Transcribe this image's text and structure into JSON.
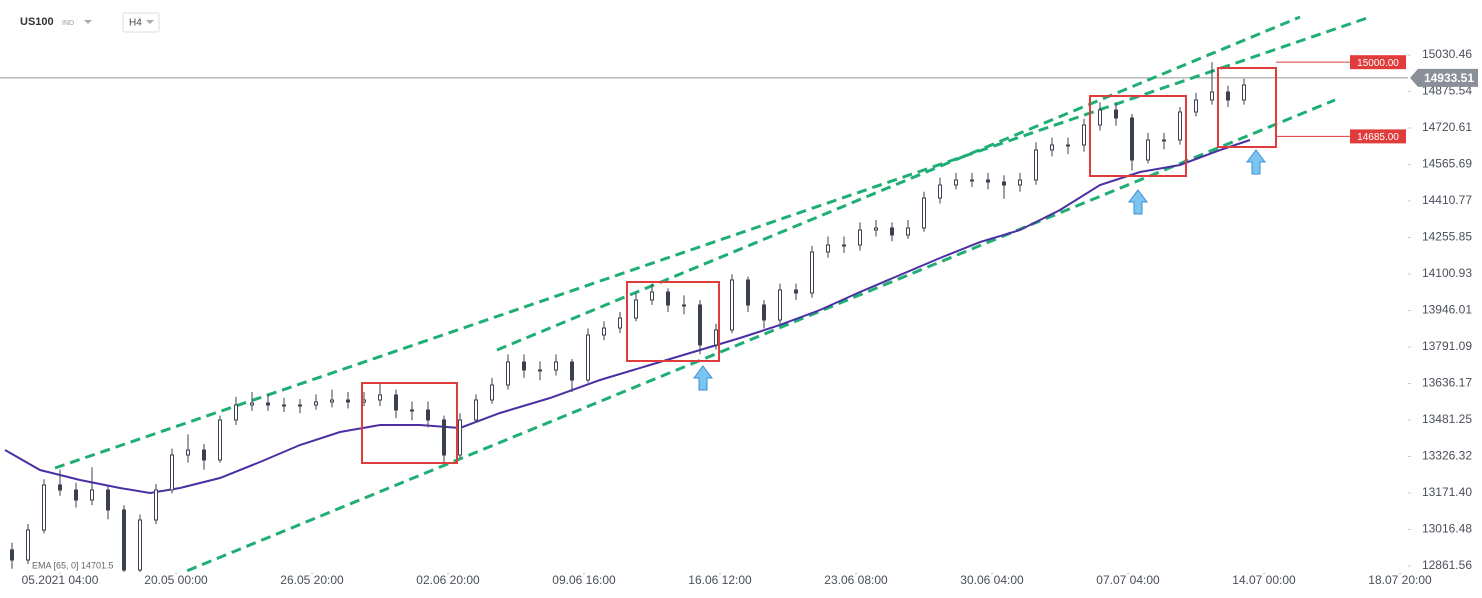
{
  "chart_data": {
    "type": "candlestick",
    "symbol": "US100",
    "market": "IND",
    "timeframe": "H4",
    "xlim": [
      0,
      352
    ],
    "ylim": [
      12836.1,
      15263.9
    ],
    "xticks": [
      {
        "value": 15,
        "label": "05.2021 04:00"
      },
      {
        "value": 44,
        "label": "20.05 00:00"
      },
      {
        "value": 78,
        "label": "26.05 20:00"
      },
      {
        "value": 112,
        "label": "02.06 20:00"
      },
      {
        "value": 146,
        "label": "09.06 16:00"
      },
      {
        "value": 180,
        "label": "16.06 12:00"
      },
      {
        "value": 214,
        "label": "23.06 08:00"
      },
      {
        "value": 248,
        "label": "30.06 04:00"
      },
      {
        "value": 282,
        "label": "07.07 04:00"
      },
      {
        "value": 316,
        "label": "14.07 00:00"
      },
      {
        "value": 350,
        "label": "18.07 20:00"
      }
    ],
    "yticks": [
      15030.46,
      14875.54,
      14720.61,
      14565.69,
      14410.77,
      14255.85,
      14100.93,
      13946.01,
      13791.09,
      13636.17,
      13481.25,
      13326.32,
      {
        "value": 13171.4,
        "label": "13171.40"
      },
      13016.48,
      12861.56
    ],
    "grid": false,
    "up_color": "#ffffff",
    "down_color": "#3c4150",
    "x": [
      3,
      7,
      11,
      15,
      19,
      23,
      27,
      31,
      35,
      39,
      43,
      47,
      51,
      55,
      59,
      63,
      67,
      71,
      75,
      79,
      83,
      87,
      91,
      95,
      99,
      103,
      107,
      111,
      115,
      119,
      123,
      127,
      131,
      135,
      139,
      143,
      147,
      151,
      155,
      159,
      163,
      167,
      171,
      175,
      179,
      183,
      187,
      191,
      195,
      199,
      203,
      207,
      211,
      215,
      219,
      223,
      227,
      231,
      235,
      239,
      243,
      247,
      251,
      255,
      259,
      263,
      267,
      271,
      275,
      279,
      283,
      287,
      291,
      295,
      299,
      303,
      307,
      311
    ],
    "open": [
      12930,
      12887.0,
      13014.4,
      13205.4,
      13184.1,
      13141.7,
      13184.1,
      13099.3,
      12844.6,
      13056.8,
      13184.1,
      13332.7,
      13353.9,
      13311.5,
      13481.3,
      13544.9,
      13553.4,
      13544.9,
      13544.9,
      13544.9,
      13557.7,
      13566.1,
      13557.7,
      13566.1,
      13587.4,
      13523.7,
      13523.7,
      13481.3,
      13332.7,
      13481.3,
      13566.1,
      13629.8,
      13727.4,
      13693.5,
      13693.5,
      13727.4,
      13651.0,
      13842.0,
      13871.7,
      13914.2,
      13990.6,
      14024.5,
      13969.4,
      13969.4,
      13799.6,
      13863.2,
      14075.5,
      13969.4,
      13905.7,
      14033.0,
      14020.3,
      14194.3,
      14224.0,
      14224.0,
      14287.7,
      14296.2,
      14266.5,
      14296.2,
      14423.5,
      14478.7,
      14499.9,
      14499.9,
      14491.4,
      14478.7,
      14499.9,
      14627.2,
      14648.5,
      14648.5,
      14733.3,
      14797.0,
      14763.1,
      14584.8,
      14669.7,
      14669.7,
      14788.5,
      14839.5,
      14873.4,
      14839.5
    ],
    "high": [
      12960,
      13040,
      13230,
      13270,
      13215,
      13280,
      13200,
      13120,
      13080,
      13210,
      13360,
      13420,
      13380,
      13500,
      13580,
      13600,
      13590,
      13575,
      13570,
      13590,
      13610,
      13600,
      13600,
      13640,
      13610,
      13560,
      13560,
      13500,
      13510,
      13590,
      13660,
      13760,
      13760,
      13730,
      13760,
      13740,
      13870,
      13900,
      13940,
      14020,
      14060,
      14040,
      14010,
      13990,
      13890,
      14100,
      14090,
      13990,
      14060,
      14060,
      14220,
      14260,
      14260,
      14320,
      14330,
      14320,
      14330,
      14450,
      14510,
      14530,
      14530,
      14530,
      14520,
      14530,
      14660,
      14680,
      14680,
      14760,
      14830,
      14830,
      14780,
      14700,
      14700,
      14810,
      14870,
      15000,
      14900,
      14930
    ],
    "low": [
      12850,
      12870,
      13000,
      13160,
      13110,
      13120,
      13060,
      12800,
      12830,
      13040,
      13170,
      13300,
      13270,
      13300,
      13460,
      13520,
      13520,
      13515,
      13510,
      13525,
      13535,
      13530,
      13540,
      13540,
      13490,
      13480,
      13450,
      13300,
      13320,
      13470,
      13550,
      13610,
      13660,
      13650,
      13670,
      13600,
      13640,
      13820,
      13850,
      13900,
      13970,
      13940,
      13930,
      13760,
      13780,
      13850,
      13940,
      13870,
      13890,
      13990,
      14000,
      14170,
      14190,
      14200,
      14260,
      14240,
      14250,
      14280,
      14400,
      14460,
      14470,
      14460,
      14420,
      14450,
      14480,
      14600,
      14610,
      14620,
      14710,
      14730,
      14540,
      14570,
      14630,
      14650,
      14770,
      14820,
      14810,
      14820
    ],
    "close": [
      12887.0,
      13014.4,
      13205.4,
      13184.1,
      13141.7,
      13184.1,
      13099.3,
      12844.6,
      13056.8,
      13184.1,
      13332.7,
      13353.9,
      13311.5,
      13481.3,
      13544.9,
      13553.4,
      13544.9,
      13544.9,
      13544.9,
      13557.7,
      13566.1,
      13557.7,
      13566.1,
      13587.4,
      13523.7,
      13523.7,
      13481.3,
      13332.7,
      13481.3,
      13566.1,
      13629.8,
      13727.4,
      13693.5,
      13693.5,
      13727.4,
      13651.0,
      13842.0,
      13871.7,
      13914.2,
      13990.6,
      14024.5,
      13969.4,
      13969.4,
      13799.6,
      13863.2,
      14075.5,
      13969.4,
      13905.7,
      14033.0,
      14020.3,
      14194.3,
      14224.0,
      14224.0,
      14287.7,
      14296.2,
      14266.5,
      14296.2,
      14423.5,
      14478.7,
      14499.9,
      14499.9,
      14491.4,
      14478.7,
      14499.9,
      14627.2,
      14648.5,
      14648.5,
      14733.3,
      14797.0,
      14763.1,
      14584.8,
      14669.7,
      14669.7,
      14788.5,
      14839.5,
      14873.4,
      14839.5,
      14903.1
    ],
    "ema": {
      "name": "EMA [65, 0] 14701.5",
      "color": "#4b2fa3",
      "x": [
        1.25,
        10,
        20,
        30,
        37.5,
        45,
        55,
        65,
        75,
        85,
        95,
        105,
        115,
        125,
        137.5,
        150,
        162.5,
        175,
        185,
        195,
        205,
        215,
        225,
        235,
        245,
        255,
        265,
        275,
        285,
        295,
        305,
        312.5
      ],
      "values": [
        13353.9,
        13269.0,
        13226.6,
        13192.6,
        13171.4,
        13192.6,
        13235.1,
        13303.0,
        13375.1,
        13430.3,
        13460.0,
        13460.0,
        13447.3,
        13511.0,
        13574.6,
        13651.0,
        13714.7,
        13778.4,
        13829.3,
        13884.5,
        13948.1,
        14024.5,
        14096.7,
        14168.8,
        14236.7,
        14287.7,
        14372.6,
        14478.7,
        14533.8,
        14563.6,
        14627.2,
        14669.7
      ]
    },
    "trendline_color": "#1fae74",
    "trendlines": [
      {
        "x": [
          13.75,
          342.5
        ],
        "values": [
          13277.5,
          15191.7
        ]
      },
      {
        "x": [
          124.25,
          325
        ],
        "values": [
          13778.4,
          15191.7
        ]
      },
      {
        "x": [
          32,
          333.75
        ],
        "values": [
          12738.4,
          14839.5
        ]
      }
    ],
    "zone_color": "#e03c3c",
    "zones": [
      {
        "x": [
          90.5,
          114.25
        ],
        "values": [
          13638.3,
          13298.7
        ]
      },
      {
        "x": [
          156.75,
          179.75
        ],
        "values": [
          14067.0,
          13731.7
        ]
      },
      {
        "x": [
          272.5,
          296.5
        ],
        "values": [
          14856.4,
          14516.9
        ]
      },
      {
        "x": [
          304.5,
          319
        ],
        "values": [
          14975.3,
          14640.0
        ]
      }
    ],
    "price_levels": [
      {
        "value": 15000,
        "label": "15000.00"
      },
      {
        "value": 14685,
        "label": "14685.00"
      }
    ],
    "last_price": 14933.51
  }
}
